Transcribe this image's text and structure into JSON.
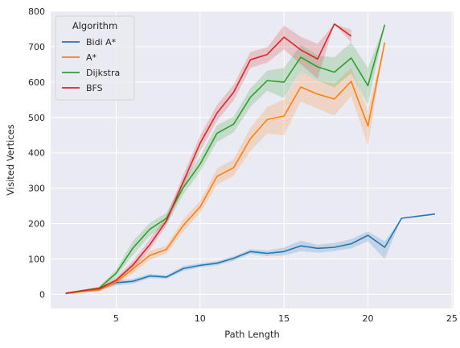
{
  "chart_data": {
    "type": "line",
    "title": "",
    "xlabel": "Path Length",
    "ylabel": "Visited Vertices",
    "xlim": [
      1.1,
      25.1
    ],
    "ylim": [
      -40,
      800
    ],
    "xticks": [
      5,
      10,
      15,
      20,
      25
    ],
    "yticks": [
      0,
      100,
      200,
      300,
      400,
      500,
      600,
      700,
      800
    ],
    "grid": true,
    "legend": {
      "title": "Algorithm",
      "placement": "top-left"
    },
    "series": [
      {
        "name": "Bidi A*",
        "color": "#1f77b4",
        "x": [
          2,
          3,
          4,
          5,
          6,
          7,
          8,
          9,
          10,
          11,
          12,
          13,
          14,
          15,
          16,
          17,
          18,
          19,
          20,
          21,
          22,
          23,
          24
        ],
        "y": [
          3,
          10,
          15,
          33,
          37,
          52,
          49,
          73,
          82,
          88,
          102,
          121,
          116,
          121,
          137,
          130,
          133,
          143,
          167,
          133,
          215,
          221,
          227
        ],
        "lower": [
          2,
          8,
          12,
          25,
          30,
          46,
          44,
          66,
          76,
          82,
          95,
          114,
          108,
          110,
          122,
          118,
          122,
          130,
          150,
          100,
          215,
          221,
          227
        ],
        "upper": [
          4,
          12,
          18,
          40,
          44,
          58,
          54,
          80,
          88,
          94,
          108,
          128,
          124,
          132,
          152,
          140,
          145,
          156,
          178,
          150,
          215,
          221,
          227
        ]
      },
      {
        "name": "A*",
        "color": "#ff7f0e",
        "x": [
          2,
          3,
          4,
          5,
          6,
          7,
          8,
          9,
          10,
          11,
          12,
          13,
          14,
          15,
          16,
          17,
          18,
          19,
          20,
          21
        ],
        "y": [
          2,
          8,
          12,
          35,
          72,
          110,
          127,
          195,
          247,
          333,
          358,
          440,
          494,
          504,
          586,
          566,
          552,
          602,
          476,
          712
        ],
        "lower": [
          1,
          6,
          9,
          28,
          60,
          98,
          115,
          178,
          230,
          310,
          335,
          405,
          455,
          450,
          545,
          525,
          505,
          560,
          420,
          712
        ],
        "upper": [
          3,
          10,
          15,
          42,
          85,
          122,
          138,
          212,
          264,
          355,
          382,
          470,
          530,
          550,
          630,
          605,
          595,
          640,
          520,
          712
        ]
      },
      {
        "name": "Dijkstra",
        "color": "#2ca02c",
        "x": [
          2,
          3,
          4,
          5,
          6,
          7,
          8,
          9,
          10,
          11,
          12,
          13,
          14,
          15,
          16,
          17,
          18,
          19,
          20,
          21
        ],
        "y": [
          3,
          11,
          18,
          60,
          131,
          184,
          215,
          302,
          368,
          455,
          481,
          557,
          604,
          600,
          670,
          643,
          628,
          668,
          590,
          762
        ],
        "lower": [
          2,
          8,
          14,
          50,
          112,
          165,
          198,
          282,
          348,
          430,
          458,
          530,
          575,
          555,
          630,
          605,
          585,
          625,
          535,
          762
        ],
        "upper": [
          4,
          13,
          22,
          70,
          150,
          202,
          230,
          322,
          390,
          478,
          502,
          582,
          632,
          640,
          705,
          675,
          670,
          712,
          640,
          762
        ]
      },
      {
        "name": "BFS",
        "color": "#d62728",
        "x": [
          2,
          3,
          4,
          5,
          6,
          7,
          8,
          9,
          10,
          11,
          12,
          13,
          14,
          15,
          16,
          17,
          18,
          19
        ],
        "y": [
          3,
          10,
          17,
          40,
          83,
          140,
          208,
          318,
          427,
          512,
          571,
          663,
          678,
          727,
          691,
          665,
          764,
          730
        ],
        "lower": [
          2,
          8,
          13,
          32,
          72,
          126,
          195,
          300,
          405,
          490,
          548,
          640,
          655,
          692,
          650,
          610,
          764,
          712
        ],
        "upper": [
          4,
          12,
          20,
          48,
          94,
          155,
          222,
          338,
          448,
          535,
          592,
          685,
          698,
          760,
          728,
          708,
          764,
          748
        ]
      }
    ]
  }
}
